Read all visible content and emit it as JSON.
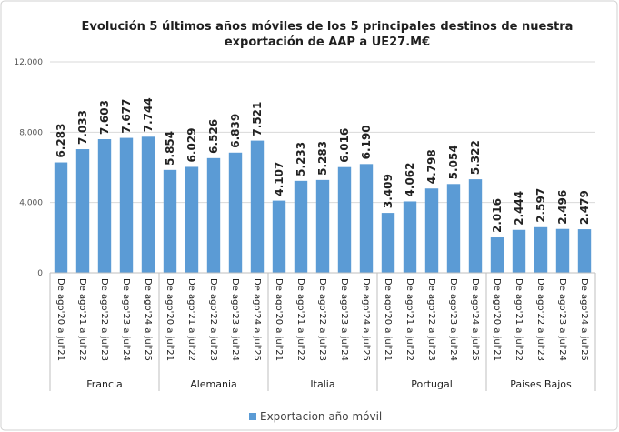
{
  "chart_data": {
    "type": "bar",
    "title": [
      "Evolución  5 últimos años móviles de los 5 principales  destinos de nuestra",
      "exportación de AAP a UE27.M€"
    ],
    "groups": [
      {
        "name": "Francia",
        "categories": [
          "De ago'20 a jul'21",
          "De ago'21 a jul'22",
          "De ago'22 a jul'23",
          "De ago'23 a jul'24",
          "De ago'24 a jul'25"
        ]
      },
      {
        "name": "Alemania",
        "categories": [
          "De ago'20 a jul'21",
          "De ago'21 a jul'22",
          "De ago'22 a jul'23",
          "De ago'23 a jul'24",
          "De ago'24 a jul'25"
        ]
      },
      {
        "name": "Italia",
        "categories": [
          "De ago'20 a jul'21",
          "De ago'21 a jul'22",
          "De ago'22 a jul'23",
          "De ago'23 a jul'24",
          "De ago'24 a jul'25"
        ]
      },
      {
        "name": "Portugal",
        "categories": [
          "De ago'20 a jul'21",
          "De ago'21 a jul'22",
          "De ago'22 a jul'23",
          "De ago'23 a jul'24",
          "De ago'24 a jul'25"
        ]
      },
      {
        "name": "Paises Bajos",
        "categories": [
          "De ago'20 a jul'21",
          "De ago'21 a jul'22",
          "De ago'22 a jul'23",
          "De ago'23 a jul'24",
          "De ago'24 a jul'25"
        ]
      }
    ],
    "series": [
      {
        "name": "Exportacion año móvil",
        "color": "#5b9bd5",
        "values": [
          6283,
          7033,
          7603,
          7677,
          7744,
          5854,
          6029,
          6526,
          6839,
          7521,
          4107,
          5233,
          5283,
          6016,
          6190,
          3409,
          4062,
          4798,
          5054,
          5322,
          2016,
          2444,
          2597,
          2496,
          2479
        ],
        "value_labels": [
          "6.283",
          "7.033",
          "7.603",
          "7.677",
          "7.744",
          "5.854",
          "6.029",
          "6.526",
          "6.839",
          "7.521",
          "4.107",
          "5.233",
          "5.283",
          "6.016",
          "6.190",
          "3.409",
          "4.062",
          "4.798",
          "5.054",
          "5.322",
          "2.016",
          "2.444",
          "2.597",
          "2.496",
          "2.479"
        ]
      }
    ],
    "ylim": [
      0,
      12000
    ],
    "yticks": [
      0,
      {
        "value": 4000,
        "label": "4.000"
      },
      {
        "value": 8000,
        "label": "8.000"
      },
      {
        "value": 12000,
        "label": "12.000"
      }
    ],
    "grid": true,
    "legend": "bottom"
  }
}
